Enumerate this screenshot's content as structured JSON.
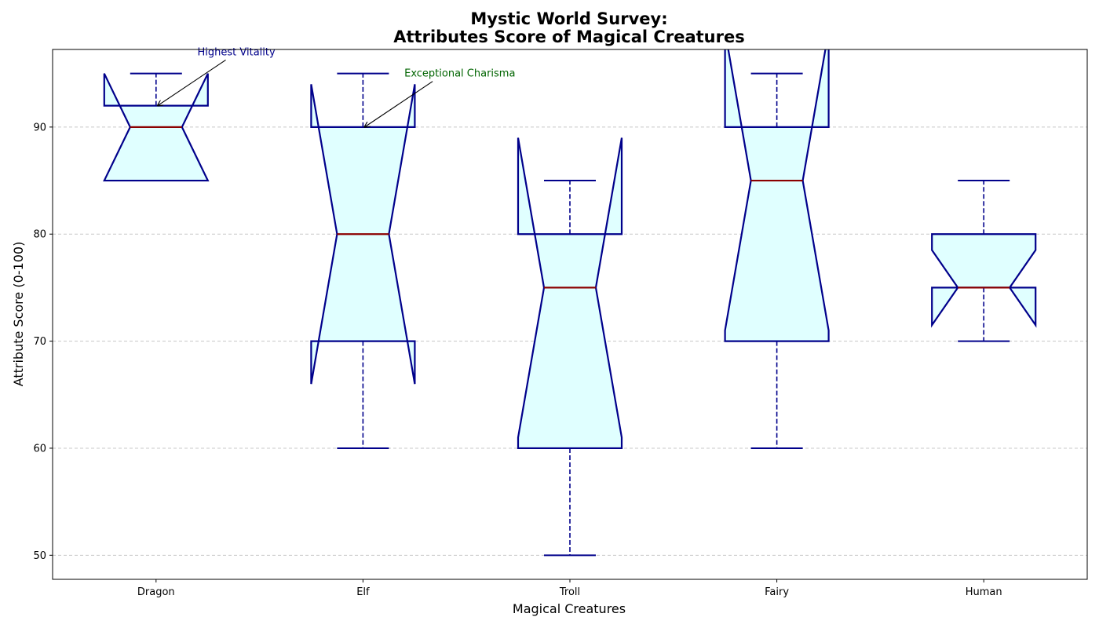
{
  "chart_data": {
    "type": "box",
    "title_line1": "Mystic World Survey:",
    "title_line2": "Attributes Score of Magical Creatures",
    "xlabel": "Magical Creatures",
    "ylabel": "Attribute Score (0-100)",
    "ylim": [
      47.75,
      97.25
    ],
    "yticks": [
      50,
      60,
      70,
      80,
      90
    ],
    "grid": "y-dashed",
    "notched": true,
    "categories": [
      "Dragon",
      "Elf",
      "Troll",
      "Fairy",
      "Human"
    ],
    "boxes": [
      {
        "category": "Dragon",
        "whisker_low": 85,
        "q1": 85,
        "median": 90,
        "q3": 92,
        "whisker_high": 95,
        "notch_low": 85,
        "notch_high": 95
      },
      {
        "category": "Elf",
        "whisker_low": 60,
        "q1": 70,
        "median": 80,
        "q3": 90,
        "whisker_high": 95,
        "notch_low": 66,
        "notch_high": 94
      },
      {
        "category": "Troll",
        "whisker_low": 50,
        "q1": 60,
        "median": 75,
        "q3": 80,
        "whisker_high": 85,
        "notch_low": 61,
        "notch_high": 89
      },
      {
        "category": "Fairy",
        "whisker_low": 60,
        "q1": 70,
        "median": 85,
        "q3": 90,
        "whisker_high": 95,
        "notch_low": 71,
        "notch_high": 99
      },
      {
        "category": "Human",
        "whisker_low": 70,
        "q1": 75,
        "median": 75,
        "q3": 80,
        "whisker_high": 85,
        "notch_low": 71.5,
        "notch_high": 78.5
      }
    ],
    "annotations": [
      {
        "text": "Highest Vitality",
        "category": "Dragon",
        "target_y": 92,
        "text_y": 97,
        "text_offset": 0.2,
        "color": "#00008b"
      },
      {
        "text": "Exceptional Charisma",
        "category": "Elf",
        "target_y": 90,
        "text_y": 95,
        "text_offset": 0.2,
        "color": "#006400"
      }
    ],
    "colors": {
      "box_fill": "#e0ffff",
      "box_edge": "#00008b",
      "median": "#8b0000",
      "whisker": "#00008b",
      "grid": "#c8c8c8"
    }
  }
}
